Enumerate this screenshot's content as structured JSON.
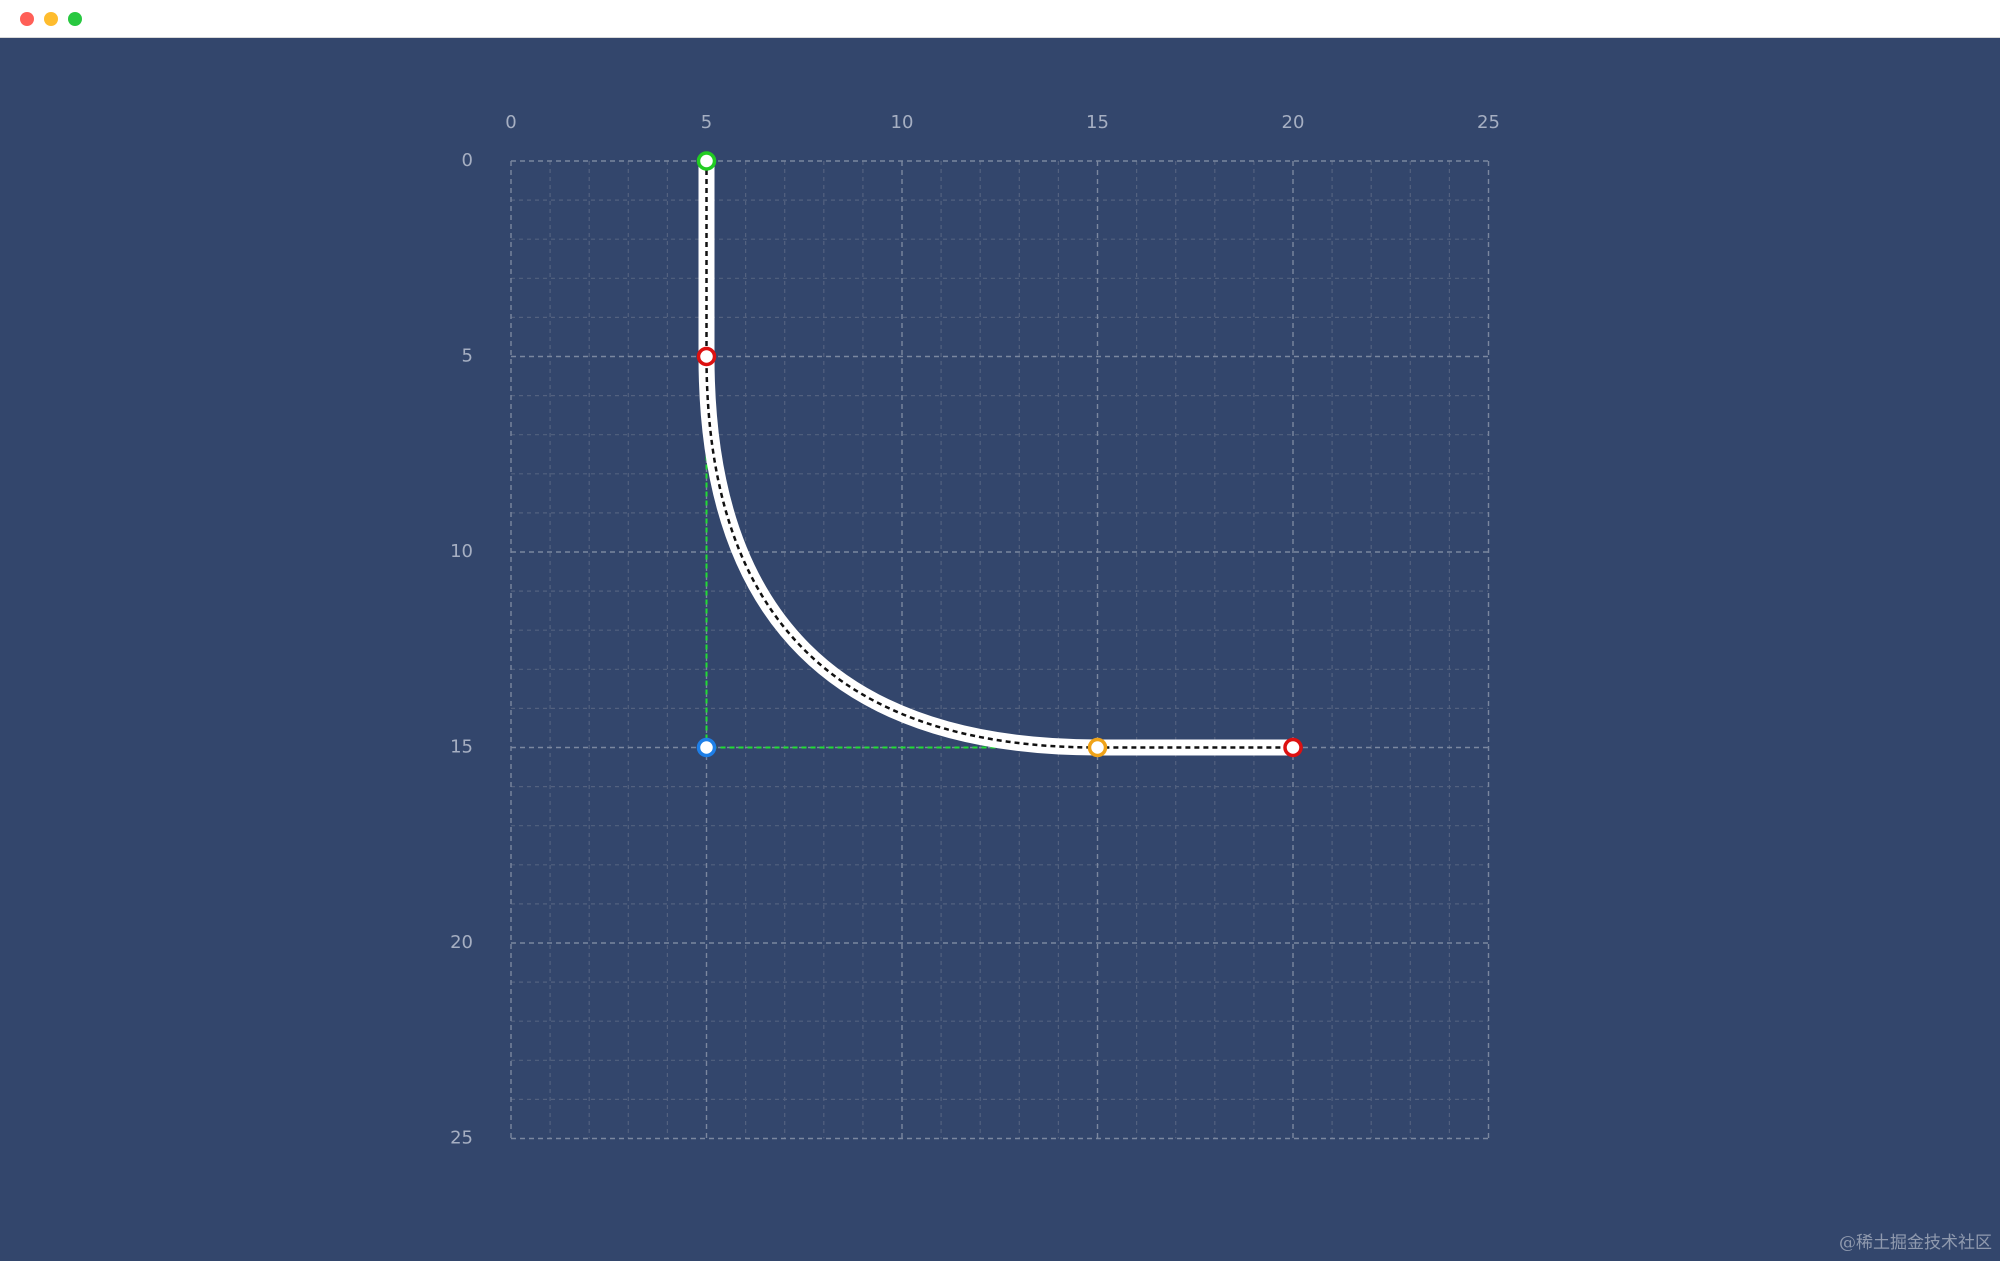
{
  "window": {
    "controls": [
      {
        "name": "close-window-dot",
        "color": "#ff5f57"
      },
      {
        "name": "minimize-window-dot",
        "color": "#febc2e"
      },
      {
        "name": "maximize-window-dot",
        "color": "#28c840"
      }
    ]
  },
  "colors": {
    "background": "#33466c",
    "grid_major": "#7b879f",
    "grid_minor": "#53617f",
    "tick_label": "#a6afc2",
    "path": "#ffffff",
    "path_dash": "#111111",
    "guide": "#22dd33"
  },
  "axes": {
    "x_ticks": [
      "0",
      "5",
      "10",
      "15",
      "20",
      "25"
    ],
    "y_ticks": [
      "0",
      "5",
      "10",
      "15",
      "20",
      "25"
    ],
    "range": [
      0,
      25
    ],
    "major_step": 5,
    "minor_step": 1
  },
  "curve": {
    "start": [
      5,
      0
    ],
    "line_end": [
      5,
      5
    ],
    "control": [
      5,
      15
    ],
    "curve_end": [
      15,
      15
    ],
    "end": [
      20,
      15
    ]
  },
  "points": [
    {
      "name": "start-point",
      "x": 5,
      "y": 0,
      "color": "#22cc22"
    },
    {
      "name": "arc-start-point",
      "x": 5,
      "y": 5,
      "color": "#dd1111"
    },
    {
      "name": "control-point",
      "x": 5,
      "y": 15,
      "color": "#1e7fe8"
    },
    {
      "name": "arc-end-point",
      "x": 15,
      "y": 15,
      "color": "#f0a318"
    },
    {
      "name": "end-point",
      "x": 20,
      "y": 15,
      "color": "#dd1111"
    }
  ],
  "watermark": "@稀土掘金技术社区"
}
